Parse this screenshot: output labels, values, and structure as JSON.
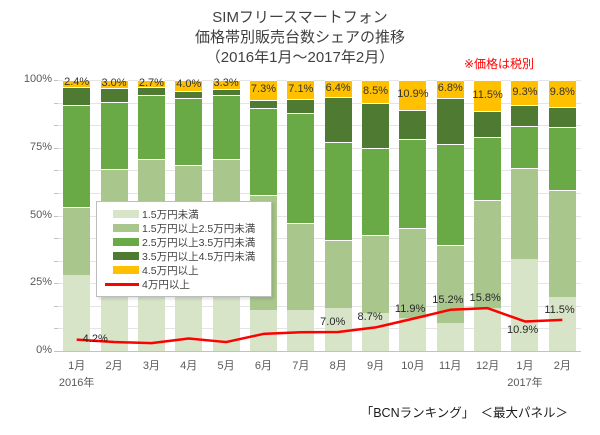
{
  "title": {
    "line1": "SIMフリースマートフォン",
    "line2": "価格帯別販売台数シェアの推移",
    "line3": "（2016年1月～2017年2月）"
  },
  "note": "※価格は税別",
  "caption": "「BCNランキング」　＜最大パネル＞",
  "colors": {
    "under15k": "#d7e4c8",
    "15k_25k": "#a9c78d",
    "25k_35k": "#6aaa46",
    "35k_45k": "#4e7b31",
    "over45k": "#ffc000",
    "line_over40k": "#ff0000",
    "grid": "#e4e4e4",
    "axis_text": "#595959",
    "title_text": "#404040",
    "note_text": "#ff0000"
  },
  "legend": {
    "items": [
      {
        "label": "1.5万円未満",
        "color": "#d7e4c8",
        "type": "rect"
      },
      {
        "label": "1.5万円以上2.5万円未満",
        "color": "#a9c78d",
        "type": "rect"
      },
      {
        "label": "2.5万円以上3.5万円未満",
        "color": "#6aaa46",
        "type": "rect"
      },
      {
        "label": "3.5万円以上4.5万円未満",
        "color": "#4e7b31",
        "type": "rect"
      },
      {
        "label": "4.5万円以上",
        "color": "#ffc000",
        "type": "rect"
      },
      {
        "label": "4万円以上",
        "color": "#ff0000",
        "type": "line"
      }
    ]
  },
  "chart_data": {
    "type": "bar",
    "subtype": "100pct-stacked-with-line",
    "title": "SIMフリースマートフォン 価格帯別販売台数シェアの推移（2016年1月～2017年2月）",
    "xlabel": "",
    "ylabel": "",
    "ylim": [
      0,
      100
    ],
    "grid_divisions": 12,
    "legend_position": "middle-left-overlay",
    "categories": [
      "1月",
      "2月",
      "3月",
      "4月",
      "5月",
      "6月",
      "7月",
      "8月",
      "9月",
      "10月",
      "11月",
      "12月",
      "1月",
      "2月"
    ],
    "year_labels": [
      {
        "index": 0,
        "label": "2016年"
      },
      {
        "index": 12,
        "label": "2017年"
      }
    ],
    "y_ticks": [
      {
        "v": 0,
        "label": "0%"
      },
      {
        "v": 25,
        "label": "25%"
      },
      {
        "v": 50,
        "label": "50%"
      },
      {
        "v": 75,
        "label": "75%"
      },
      {
        "v": 100,
        "label": "100%"
      }
    ],
    "series": [
      {
        "name": "1.5万円未満",
        "color": "#d7e4c8",
        "values": [
          28.0,
          26.0,
          25.0,
          23.5,
          20.0,
          15.0,
          15.0,
          16.0,
          14.2,
          12.3,
          10.4,
          16.0,
          34.1,
          19.8
        ]
      },
      {
        "name": "1.5万円以上2.5万円未満",
        "color": "#a9c78d",
        "values": [
          25.0,
          41.0,
          46.0,
          45.0,
          50.7,
          42.7,
          32.4,
          24.9,
          28.6,
          33.0,
          28.7,
          39.9,
          33.5,
          39.8
        ]
      },
      {
        "name": "2.5万円以上3.5万円未満",
        "color": "#6aaa46",
        "values": [
          37.6,
          25.0,
          23.3,
          24.9,
          23.7,
          31.9,
          40.4,
          36.1,
          32.3,
          32.9,
          37.3,
          22.9,
          15.6,
          23.0
        ]
      },
      {
        "name": "3.5万円以上4.5万円未満",
        "color": "#4e7b31",
        "values": [
          7.0,
          5.0,
          3.0,
          2.6,
          2.3,
          3.1,
          5.1,
          16.6,
          16.4,
          10.9,
          16.8,
          9.7,
          7.5,
          7.6
        ]
      },
      {
        "name": "4.5万円以上",
        "color": "#ffc000",
        "values": [
          2.4,
          3.0,
          2.7,
          4.0,
          3.3,
          7.3,
          7.1,
          6.4,
          8.5,
          10.9,
          6.8,
          11.5,
          9.3,
          9.8
        ],
        "labels": [
          "2.4%",
          "3.0%",
          "2.7%",
          "4.0%",
          "3.3%",
          "7.3%",
          "7.1%",
          "6.4%",
          "8.5%",
          "10.9%",
          "6.8%",
          "11.5%",
          "9.3%",
          "9.8%"
        ]
      }
    ],
    "line": {
      "name": "4万円以上",
      "color": "#ff0000",
      "values": [
        4.2,
        3.3,
        2.9,
        4.6,
        3.3,
        6.3,
        6.9,
        7.0,
        8.7,
        11.9,
        15.2,
        15.8,
        10.9,
        11.5
      ],
      "labels": [
        "4.2%",
        "",
        "",
        "",
        "",
        "",
        "",
        "7.0%",
        "8.7%",
        "11.9%",
        "15.2%",
        "15.8%",
        "10.9%",
        "11.5%"
      ],
      "label_positions": [
        "right",
        "",
        "",
        "",
        "",
        "",
        "",
        "above",
        "above",
        "above",
        "above",
        "above",
        "below",
        "above"
      ]
    }
  }
}
